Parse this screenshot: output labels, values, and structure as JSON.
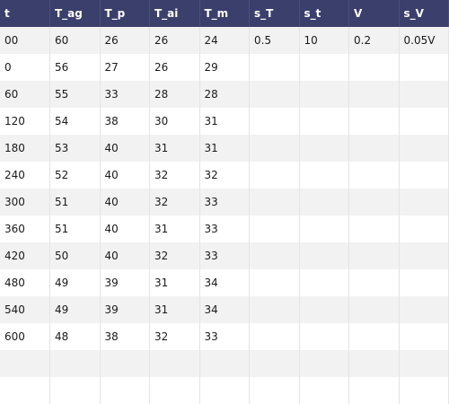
{
  "columns": [
    "t",
    "T_ag",
    "T_p",
    "T_ai",
    "T_m",
    "s_T",
    "s_t",
    "V",
    "s_V"
  ],
  "rows": [
    [
      "00",
      "60",
      "26",
      "26",
      "24",
      "0.5",
      "10",
      "0.2",
      "0.05V"
    ],
    [
      "0",
      "56",
      "27",
      "26",
      "29",
      "",
      "",
      "",
      ""
    ],
    [
      "60",
      "55",
      "33",
      "28",
      "28",
      "",
      "",
      "",
      ""
    ],
    [
      "120",
      "54",
      "38",
      "30",
      "31",
      "",
      "",
      "",
      ""
    ],
    [
      "180",
      "53",
      "40",
      "31",
      "31",
      "",
      "",
      "",
      ""
    ],
    [
      "240",
      "52",
      "40",
      "32",
      "32",
      "",
      "",
      "",
      ""
    ],
    [
      "300",
      "51",
      "40",
      "32",
      "33",
      "",
      "",
      "",
      ""
    ],
    [
      "360",
      "51",
      "40",
      "31",
      "33",
      "",
      "",
      "",
      ""
    ],
    [
      "420",
      "50",
      "40",
      "32",
      "33",
      "",
      "",
      "",
      ""
    ],
    [
      "480",
      "49",
      "39",
      "31",
      "34",
      "",
      "",
      "",
      ""
    ],
    [
      "540",
      "49",
      "39",
      "31",
      "34",
      "",
      "",
      "",
      ""
    ],
    [
      "600",
      "48",
      "38",
      "32",
      "33",
      "",
      "",
      "",
      ""
    ],
    [
      "",
      "",
      "",
      "",
      "",
      "",
      "",
      "",
      ""
    ],
    [
      "",
      "",
      "",
      "",
      "",
      "",
      "",
      "",
      ""
    ]
  ]
}
